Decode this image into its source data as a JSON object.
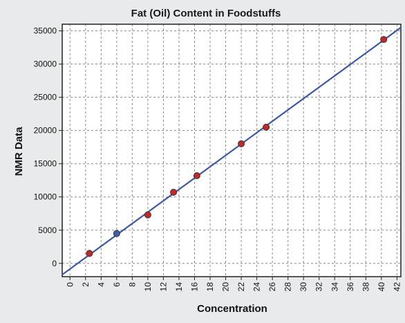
{
  "chart_data": {
    "type": "scatter",
    "title": "Fat (Oil) Content in Foodstuffs",
    "xlabel": "Concentration",
    "ylabel": "NMR Data",
    "xlim": [
      -1,
      42.5
    ],
    "ylim": [
      -2000,
      36000
    ],
    "x_ticks": [
      0,
      2,
      4,
      6,
      8,
      10,
      12,
      14,
      16,
      18,
      20,
      22,
      24,
      26,
      28,
      30,
      32,
      34,
      36,
      38,
      40,
      42
    ],
    "y_ticks": [
      0,
      5000,
      10000,
      15000,
      20000,
      25000,
      30000,
      35000
    ],
    "grid": true,
    "points": [
      {
        "x": 2.5,
        "y": 1500,
        "color": "#c62828"
      },
      {
        "x": 6.0,
        "y": 4500,
        "color": "#3f5fae"
      },
      {
        "x": 10.0,
        "y": 7300,
        "color": "#c62828"
      },
      {
        "x": 13.3,
        "y": 10700,
        "color": "#c62828"
      },
      {
        "x": 16.3,
        "y": 13200,
        "color": "#c62828"
      },
      {
        "x": 22.0,
        "y": 18000,
        "color": "#c62828"
      },
      {
        "x": 25.2,
        "y": 20500,
        "color": "#c62828"
      },
      {
        "x": 40.3,
        "y": 33700,
        "color": "#c62828"
      }
    ],
    "fit_line": {
      "x": [
        -1,
        42.5
      ],
      "y": [
        -1700,
        35500
      ],
      "color": "#3a58a8"
    }
  }
}
